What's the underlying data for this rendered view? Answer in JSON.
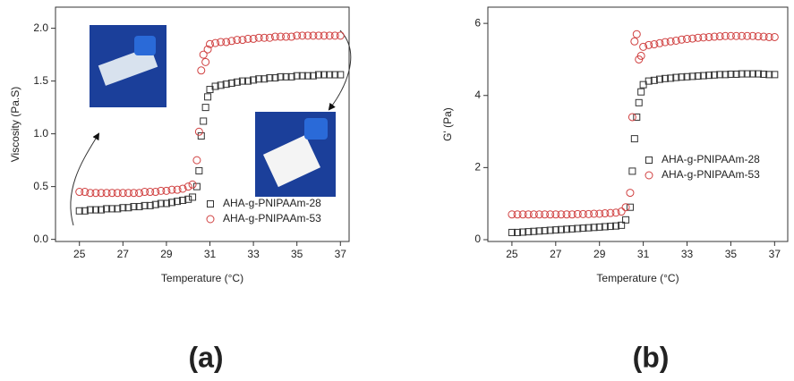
{
  "chart_data": [
    {
      "type": "scatter",
      "label": "(a)",
      "xlabel": "Temperature (°C)",
      "ylabel": "Viscosity (Pa.S)",
      "x": [
        25,
        25.25,
        25.5,
        25.75,
        26,
        26.25,
        26.5,
        26.75,
        27,
        27.25,
        27.5,
        27.75,
        28,
        28.25,
        28.5,
        28.75,
        29,
        29.25,
        29.5,
        29.75,
        30,
        30.2,
        30.4,
        30.5,
        30.6,
        30.7,
        30.8,
        30.9,
        31,
        31.25,
        31.5,
        31.75,
        32,
        32.25,
        32.5,
        32.75,
        33,
        33.25,
        33.5,
        33.75,
        34,
        34.25,
        34.5,
        34.75,
        35,
        35.25,
        35.5,
        35.75,
        36,
        36.25,
        36.5,
        36.75,
        37
      ],
      "series": [
        {
          "name": "AHA-g-PNIPAAm-28",
          "color": "#333333",
          "marker": "square",
          "values": [
            0.27,
            0.27,
            0.28,
            0.28,
            0.28,
            0.29,
            0.29,
            0.29,
            0.3,
            0.3,
            0.31,
            0.31,
            0.32,
            0.32,
            0.33,
            0.34,
            0.34,
            0.35,
            0.36,
            0.37,
            0.38,
            0.4,
            0.5,
            0.65,
            0.98,
            1.12,
            1.25,
            1.35,
            1.42,
            1.45,
            1.46,
            1.47,
            1.48,
            1.49,
            1.5,
            1.5,
            1.51,
            1.52,
            1.52,
            1.53,
            1.53,
            1.54,
            1.54,
            1.54,
            1.55,
            1.55,
            1.55,
            1.55,
            1.56,
            1.56,
            1.56,
            1.56,
            1.56
          ]
        },
        {
          "name": "AHA-g-PNIPAAm-53",
          "color": "#d04040",
          "marker": "circle",
          "values": [
            0.45,
            0.45,
            0.44,
            0.44,
            0.44,
            0.44,
            0.44,
            0.44,
            0.44,
            0.44,
            0.44,
            0.44,
            0.45,
            0.45,
            0.45,
            0.46,
            0.46,
            0.47,
            0.47,
            0.48,
            0.5,
            0.52,
            0.75,
            1.02,
            1.6,
            1.75,
            1.68,
            1.8,
            1.85,
            1.86,
            1.87,
            1.87,
            1.88,
            1.89,
            1.89,
            1.9,
            1.9,
            1.91,
            1.91,
            1.91,
            1.92,
            1.92,
            1.92,
            1.92,
            1.93,
            1.93,
            1.93,
            1.93,
            1.93,
            1.93,
            1.93,
            1.93,
            1.93
          ]
        }
      ],
      "xlim": [
        23.9,
        37.4
      ],
      "xticks": [
        25,
        27,
        29,
        31,
        33,
        35,
        37
      ],
      "ylim": [
        -0.02,
        2.2
      ],
      "yticks": [
        {
          "value": 0,
          "label": "0.0"
        },
        0.5,
        {
          "value": 1,
          "label": "1.0"
        },
        1.5,
        {
          "value": 2,
          "label": "2.0"
        }
      ],
      "legend": "lower right"
    },
    {
      "type": "scatter",
      "label": "(b)",
      "xlabel": "Temperature (°C)",
      "ylabel": "G' (Pa)",
      "x": [
        25,
        25.25,
        25.5,
        25.75,
        26,
        26.25,
        26.5,
        26.75,
        27,
        27.25,
        27.5,
        27.75,
        28,
        28.25,
        28.5,
        28.75,
        29,
        29.25,
        29.5,
        29.75,
        30,
        30.2,
        30.4,
        30.5,
        30.6,
        30.7,
        30.8,
        30.9,
        31,
        31.25,
        31.5,
        31.75,
        32,
        32.25,
        32.5,
        32.75,
        33,
        33.25,
        33.5,
        33.75,
        34,
        34.25,
        34.5,
        34.75,
        35,
        35.25,
        35.5,
        35.75,
        36,
        36.25,
        36.5,
        36.75,
        37
      ],
      "series": [
        {
          "name": "AHA-g-PNIPAAm-28",
          "color": "#333333",
          "marker": "square",
          "values": [
            0.2,
            0.2,
            0.21,
            0.22,
            0.23,
            0.24,
            0.25,
            0.26,
            0.27,
            0.28,
            0.29,
            0.3,
            0.31,
            0.32,
            0.33,
            0.34,
            0.35,
            0.36,
            0.37,
            0.38,
            0.4,
            0.55,
            0.9,
            1.9,
            2.8,
            3.4,
            3.8,
            4.1,
            4.3,
            4.4,
            4.42,
            4.45,
            4.47,
            4.48,
            4.5,
            4.51,
            4.52,
            4.53,
            4.54,
            4.55,
            4.56,
            4.57,
            4.58,
            4.58,
            4.59,
            4.59,
            4.6,
            4.6,
            4.6,
            4.6,
            4.59,
            4.58,
            4.58
          ]
        },
        {
          "name": "AHA-g-PNIPAAm-53",
          "color": "#d04040",
          "marker": "circle",
          "values": [
            0.7,
            0.7,
            0.7,
            0.7,
            0.7,
            0.7,
            0.7,
            0.7,
            0.7,
            0.7,
            0.7,
            0.7,
            0.71,
            0.71,
            0.71,
            0.72,
            0.72,
            0.73,
            0.74,
            0.75,
            0.78,
            0.9,
            1.3,
            3.4,
            5.5,
            5.7,
            5.0,
            5.1,
            5.35,
            5.4,
            5.42,
            5.45,
            5.48,
            5.5,
            5.52,
            5.55,
            5.57,
            5.58,
            5.6,
            5.61,
            5.62,
            5.63,
            5.64,
            5.65,
            5.65,
            5.65,
            5.65,
            5.65,
            5.65,
            5.64,
            5.63,
            5.62,
            5.62
          ]
        }
      ],
      "xlim": [
        23.9,
        37.6
      ],
      "xticks": [
        25,
        27,
        29,
        31,
        33,
        35,
        37
      ],
      "ylim": [
        -0.05,
        6.45
      ],
      "yticks": [
        0,
        2,
        4,
        6
      ],
      "legend": "center right"
    }
  ]
}
